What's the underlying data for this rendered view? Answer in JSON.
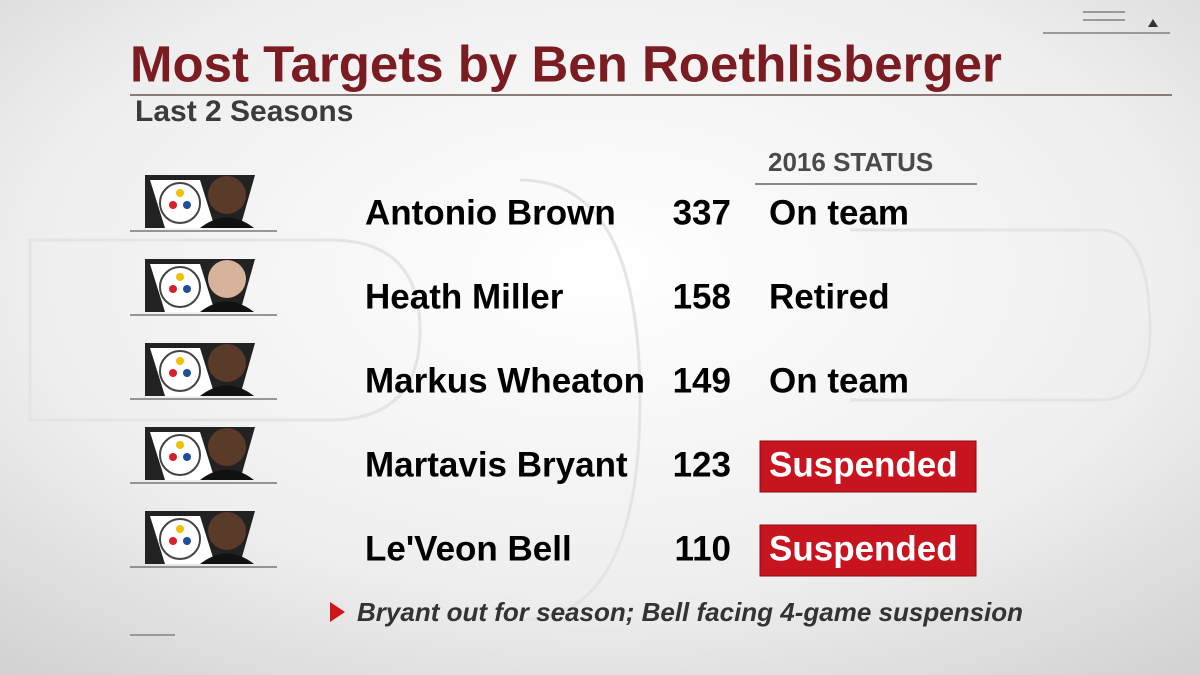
{
  "header": {
    "title": "Most Targets by Ben Roethlisberger",
    "subtitle": "Last 2 Seasons"
  },
  "table": {
    "column_header": "2016 STATUS",
    "rows": [
      {
        "name": "Antonio Brown",
        "targets": 337,
        "status": "On team"
      },
      {
        "name": "Heath Miller",
        "targets": 158,
        "status": "Retired"
      },
      {
        "name": "Markus Wheaton",
        "targets": 149,
        "status": "On team"
      },
      {
        "name": "Martavis Bryant",
        "targets": 123,
        "status": "Suspended",
        "color": "#c8141e"
      },
      {
        "name": "Le'Veon Bell",
        "targets": 110,
        "status": "Suspended",
        "color": "#c8141e"
      }
    ]
  },
  "footnote": "Bryant out for season; Bell facing 4-game suspension"
}
